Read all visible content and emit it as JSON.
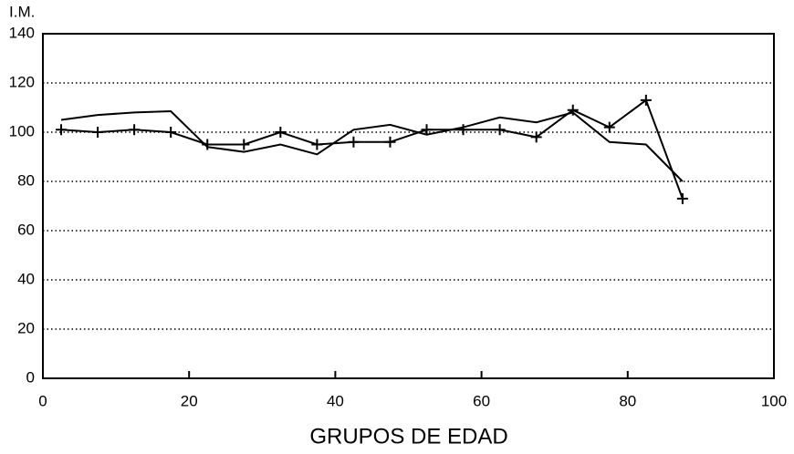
{
  "chart_data": {
    "type": "line",
    "y_label": "I.M.",
    "x_label": "GRUPOS DE EDAD",
    "xlim": [
      0,
      100
    ],
    "xticks": [
      0,
      20,
      40,
      60,
      80,
      100
    ],
    "ylim": [
      0,
      140
    ],
    "yticks": [
      0,
      20,
      40,
      60,
      80,
      100,
      120,
      140
    ],
    "grid": true,
    "x": [
      2.5,
      7.5,
      12.5,
      17.5,
      22.5,
      27.5,
      32.5,
      37.5,
      42.5,
      47.5,
      52.5,
      57.5,
      62.5,
      67.5,
      72.5,
      77.5,
      82.5,
      87.5
    ],
    "series": [
      {
        "color": "#000000",
        "marker": "none",
        "values": [
          105,
          107,
          108,
          108.5,
          94,
          92,
          95,
          91,
          101,
          103,
          99,
          102,
          106,
          104,
          108,
          96,
          95,
          80
        ]
      },
      {
        "color": "#000000",
        "marker": "+",
        "values": [
          101,
          100,
          101,
          100,
          95,
          95,
          100,
          95,
          96,
          96,
          101,
          101,
          101,
          98,
          109,
          102,
          113,
          73
        ]
      }
    ]
  }
}
